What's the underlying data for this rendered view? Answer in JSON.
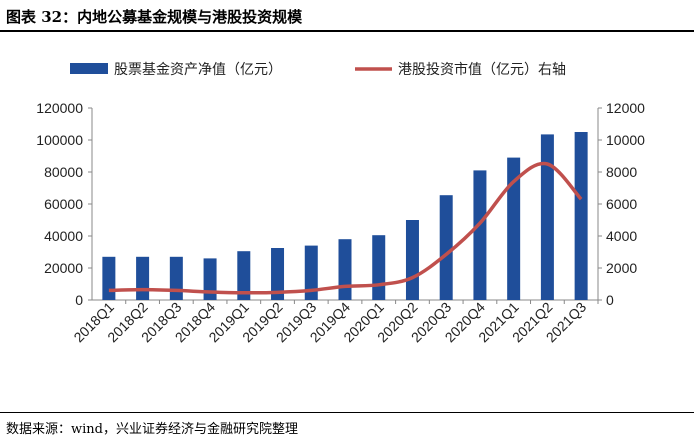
{
  "header": {
    "title": "图表 32：内地公募基金规模与港股投资规模"
  },
  "footer": {
    "source": "数据来源：wind，兴业证券经济与金融研究院整理"
  },
  "colors": {
    "bar": "#1f4e9a",
    "line": "#c0504d",
    "axis": "#888888"
  },
  "chart_data": {
    "type": "bar",
    "categories": [
      "2018Q1",
      "2018Q2",
      "2018Q3",
      "2018Q4",
      "2019Q1",
      "2019Q2",
      "2019Q3",
      "2019Q4",
      "2020Q1",
      "2020Q2",
      "2020Q3",
      "2020Q4",
      "2021Q1",
      "2021Q2",
      "2021Q3"
    ],
    "series": [
      {
        "name": "股票基金资产净值（亿元）",
        "type": "bar",
        "axis": "left",
        "values": [
          27000,
          27000,
          27000,
          26000,
          30500,
          32500,
          34000,
          38000,
          40500,
          50000,
          65500,
          81000,
          89000,
          103500,
          105000
        ]
      },
      {
        "name": "港股投资市值（亿元）右轴",
        "type": "line",
        "axis": "right",
        "values": [
          600,
          650,
          600,
          500,
          450,
          480,
          600,
          850,
          950,
          1400,
          2850,
          4800,
          7400,
          8500,
          6300
        ]
      }
    ],
    "y_left": {
      "ylim": [
        0,
        120000
      ],
      "ticks": [
        "0",
        "20000",
        "40000",
        "60000",
        "80000",
        "100000",
        "120000"
      ]
    },
    "y_right": {
      "ylim": [
        0,
        12000
      ],
      "ticks": [
        "0",
        "2000",
        "4000",
        "6000",
        "8000",
        "10000",
        "12000"
      ]
    },
    "legend_position": "top",
    "grid": false
  }
}
